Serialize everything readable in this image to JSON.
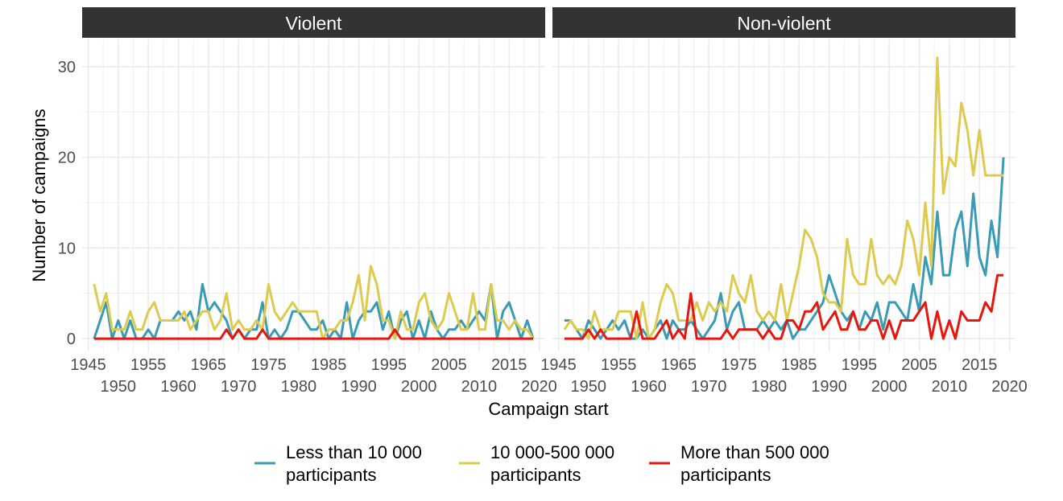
{
  "chart_data": {
    "type": "line",
    "xlabel": "Campaign start",
    "ylabel": "Number of campaigns",
    "xlim": [
      1944,
      2021
    ],
    "ylim": [
      -1.5,
      33
    ],
    "x_ticks_row1": [
      1945,
      1955,
      1965,
      1975,
      1985,
      1995,
      2005,
      2015
    ],
    "x_ticks_row2": [
      1950,
      1960,
      1970,
      1980,
      1990,
      2000,
      2010,
      2020
    ],
    "y_ticks": [
      0,
      10,
      20,
      30
    ],
    "grid": true,
    "legend_position": "bottom",
    "series_legend": [
      {
        "line1": "Less than 10 000",
        "line2": "participants",
        "color": "#3a9bb4"
      },
      {
        "line1": "10 000-500 000",
        "line2": "participants",
        "color": "#dccb4f"
      },
      {
        "line1": "More than 500 000",
        "line2": "participants",
        "color": "#e8160c"
      }
    ],
    "x": [
      1946,
      1947,
      1948,
      1949,
      1950,
      1951,
      1952,
      1953,
      1954,
      1955,
      1956,
      1957,
      1958,
      1959,
      1960,
      1961,
      1962,
      1963,
      1964,
      1965,
      1966,
      1967,
      1968,
      1969,
      1970,
      1971,
      1972,
      1973,
      1974,
      1975,
      1976,
      1977,
      1978,
      1979,
      1980,
      1981,
      1982,
      1983,
      1984,
      1985,
      1986,
      1987,
      1988,
      1989,
      1990,
      1991,
      1992,
      1993,
      1994,
      1995,
      1996,
      1997,
      1998,
      1999,
      2000,
      2001,
      2002,
      2003,
      2004,
      2005,
      2006,
      2007,
      2008,
      2009,
      2010,
      2011,
      2012,
      2013,
      2014,
      2015,
      2016,
      2017,
      2018,
      2019
    ],
    "panels": [
      {
        "title": "Violent",
        "series": [
          {
            "values": [
              0,
              2,
              4,
              0,
              2,
              0,
              2,
              0,
              0,
              1,
              0,
              2,
              2,
              2,
              3,
              2,
              3,
              1,
              6,
              3,
              4,
              3,
              2,
              0,
              1,
              0,
              1,
              1,
              4,
              0,
              1,
              0,
              1,
              3,
              3,
              2,
              1,
              1,
              2,
              0,
              1,
              0,
              4,
              0,
              2,
              3,
              3,
              4,
              1,
              3,
              0,
              2,
              3,
              0,
              2,
              0,
              3,
              1,
              0,
              1,
              1,
              2,
              1,
              2,
              3,
              2,
              6,
              0,
              3,
              4,
              2,
              0,
              2,
              0
            ]
          },
          {
            "values": [
              6,
              3,
              5,
              1,
              1,
              1,
              3,
              1,
              1,
              3,
              4,
              2,
              2,
              2,
              2,
              3,
              1,
              2,
              3,
              3,
              1,
              2,
              5,
              1,
              2,
              1,
              1,
              2,
              1,
              6,
              3,
              2,
              3,
              4,
              3,
              3,
              3,
              3,
              0,
              1,
              1,
              2,
              2,
              4,
              7,
              2,
              8,
              6,
              2,
              2,
              0,
              3,
              1,
              1,
              4,
              5,
              2,
              1,
              2,
              5,
              3,
              1,
              1,
              5,
              1,
              1,
              6,
              2,
              2,
              1,
              2,
              1,
              1,
              0
            ]
          },
          {
            "values": [
              0,
              0,
              0,
              0,
              0,
              0,
              0,
              0,
              0,
              0,
              0,
              0,
              0,
              0,
              0,
              0,
              0,
              0,
              0,
              0,
              0,
              0,
              1,
              0,
              1,
              0,
              0,
              0,
              1,
              0,
              0,
              0,
              0,
              0,
              0,
              0,
              0,
              0,
              0,
              0,
              0,
              0,
              0,
              0,
              0,
              0,
              0,
              0,
              0,
              0,
              1,
              0,
              0,
              0,
              0,
              0,
              0,
              0,
              0,
              0,
              0,
              0,
              0,
              0,
              0,
              0,
              0,
              0,
              0,
              0,
              0,
              0,
              0,
              0
            ]
          }
        ]
      },
      {
        "title": "Non-violent",
        "series": [
          {
            "values": [
              2,
              2,
              1,
              0,
              2,
              1,
              0,
              1,
              2,
              1,
              2,
              0,
              0,
              1,
              0,
              1,
              2,
              0,
              2,
              1,
              1,
              2,
              1,
              0,
              1,
              2,
              5,
              1,
              3,
              4,
              1,
              1,
              1,
              2,
              1,
              2,
              1,
              2,
              0,
              1,
              1,
              2,
              3,
              4,
              7,
              5,
              3,
              2,
              3,
              1,
              3,
              2,
              4,
              1,
              4,
              4,
              3,
              2,
              6,
              3,
              9,
              6,
              14,
              7,
              7,
              12,
              14,
              8,
              16,
              9,
              7,
              13,
              9,
              20
            ]
          },
          {
            "values": [
              1,
              2,
              1,
              1,
              0,
              3,
              1,
              1,
              1,
              3,
              3,
              3,
              0,
              4,
              0,
              1,
              4,
              6,
              5,
              2,
              2,
              2,
              4,
              2,
              4,
              3,
              4,
              3,
              7,
              5,
              4,
              7,
              3,
              2,
              3,
              2,
              6,
              2,
              5,
              8,
              12,
              11,
              9,
              5,
              4,
              4,
              3,
              11,
              7,
              6,
              6,
              11,
              7,
              6,
              7,
              6,
              8,
              13,
              11,
              7,
              15,
              8,
              31,
              16,
              20,
              19,
              26,
              23,
              18,
              23,
              18,
              18,
              18,
              18
            ]
          },
          {
            "values": [
              0,
              0,
              0,
              0,
              1,
              0,
              1,
              0,
              0,
              0,
              0,
              0,
              3,
              0,
              0,
              0,
              1,
              2,
              0,
              1,
              0,
              5,
              0,
              0,
              0,
              0,
              0,
              1,
              0,
              1,
              1,
              1,
              1,
              0,
              1,
              0,
              0,
              2,
              2,
              1,
              3,
              3,
              4,
              1,
              2,
              3,
              1,
              1,
              3,
              1,
              1,
              2,
              2,
              0,
              2,
              0,
              2,
              2,
              2,
              3,
              4,
              0,
              3,
              0,
              2,
              0,
              3,
              2,
              2,
              2,
              4,
              3,
              7,
              7
            ]
          }
        ]
      }
    ]
  }
}
